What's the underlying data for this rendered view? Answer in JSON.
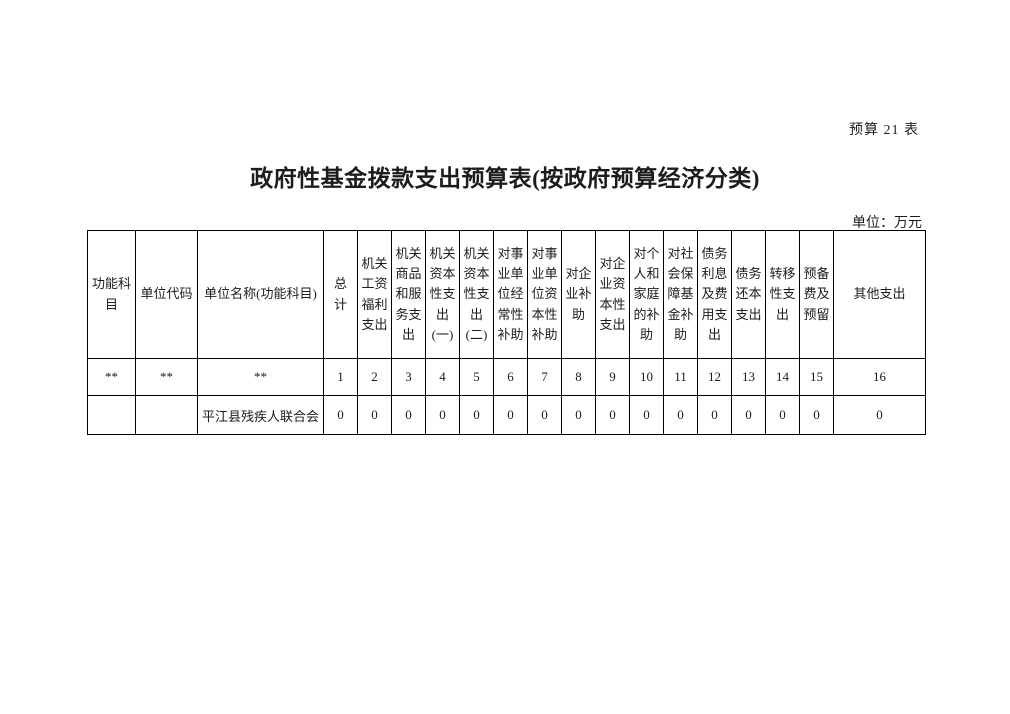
{
  "page": {
    "corner_label": "预算 21 表",
    "title": "政府性基金拨款支出预算表(按政府预算经济分类)",
    "unit_label": "单位：万元"
  },
  "table": {
    "header_labels": [
      "功能科目",
      "单位代码",
      "单位名称(功能科目)",
      "总\n计",
      "机关\n工资\n福利\n支出",
      "机关\n商品\n和服\n务支\n出",
      "机关\n资本\n性支\n出\n(一)",
      "机关\n资本\n性支\n出\n(二)",
      "对事\n业单\n位经\n常性\n补助",
      "对事\n业单\n位资\n本性\n补助",
      "对企\n业补\n助",
      "对企\n业资\n本性\n支出",
      "对个\n人和\n家庭\n的补\n助",
      "对社\n会保\n障基\n金补\n助",
      "债务\n利息\n及费\n用支\n出",
      "债务\n还本\n支出",
      "转移\n性支\n出",
      "预备\n费及\n预留",
      "其他支出"
    ],
    "index_row": [
      "**",
      "**",
      "**",
      "1",
      "2",
      "3",
      "4",
      "5",
      "6",
      "7",
      "8",
      "9",
      "10",
      "11",
      "12",
      "13",
      "14",
      "15",
      "16"
    ],
    "rows": [
      {
        "cells": [
          "",
          "",
          "平江县残疾人联合会",
          "0",
          "0",
          "0",
          "0",
          "0",
          "0",
          "0",
          "0",
          "0",
          "0",
          "0",
          "0",
          "0",
          "0",
          "0",
          "0"
        ]
      }
    ]
  }
}
